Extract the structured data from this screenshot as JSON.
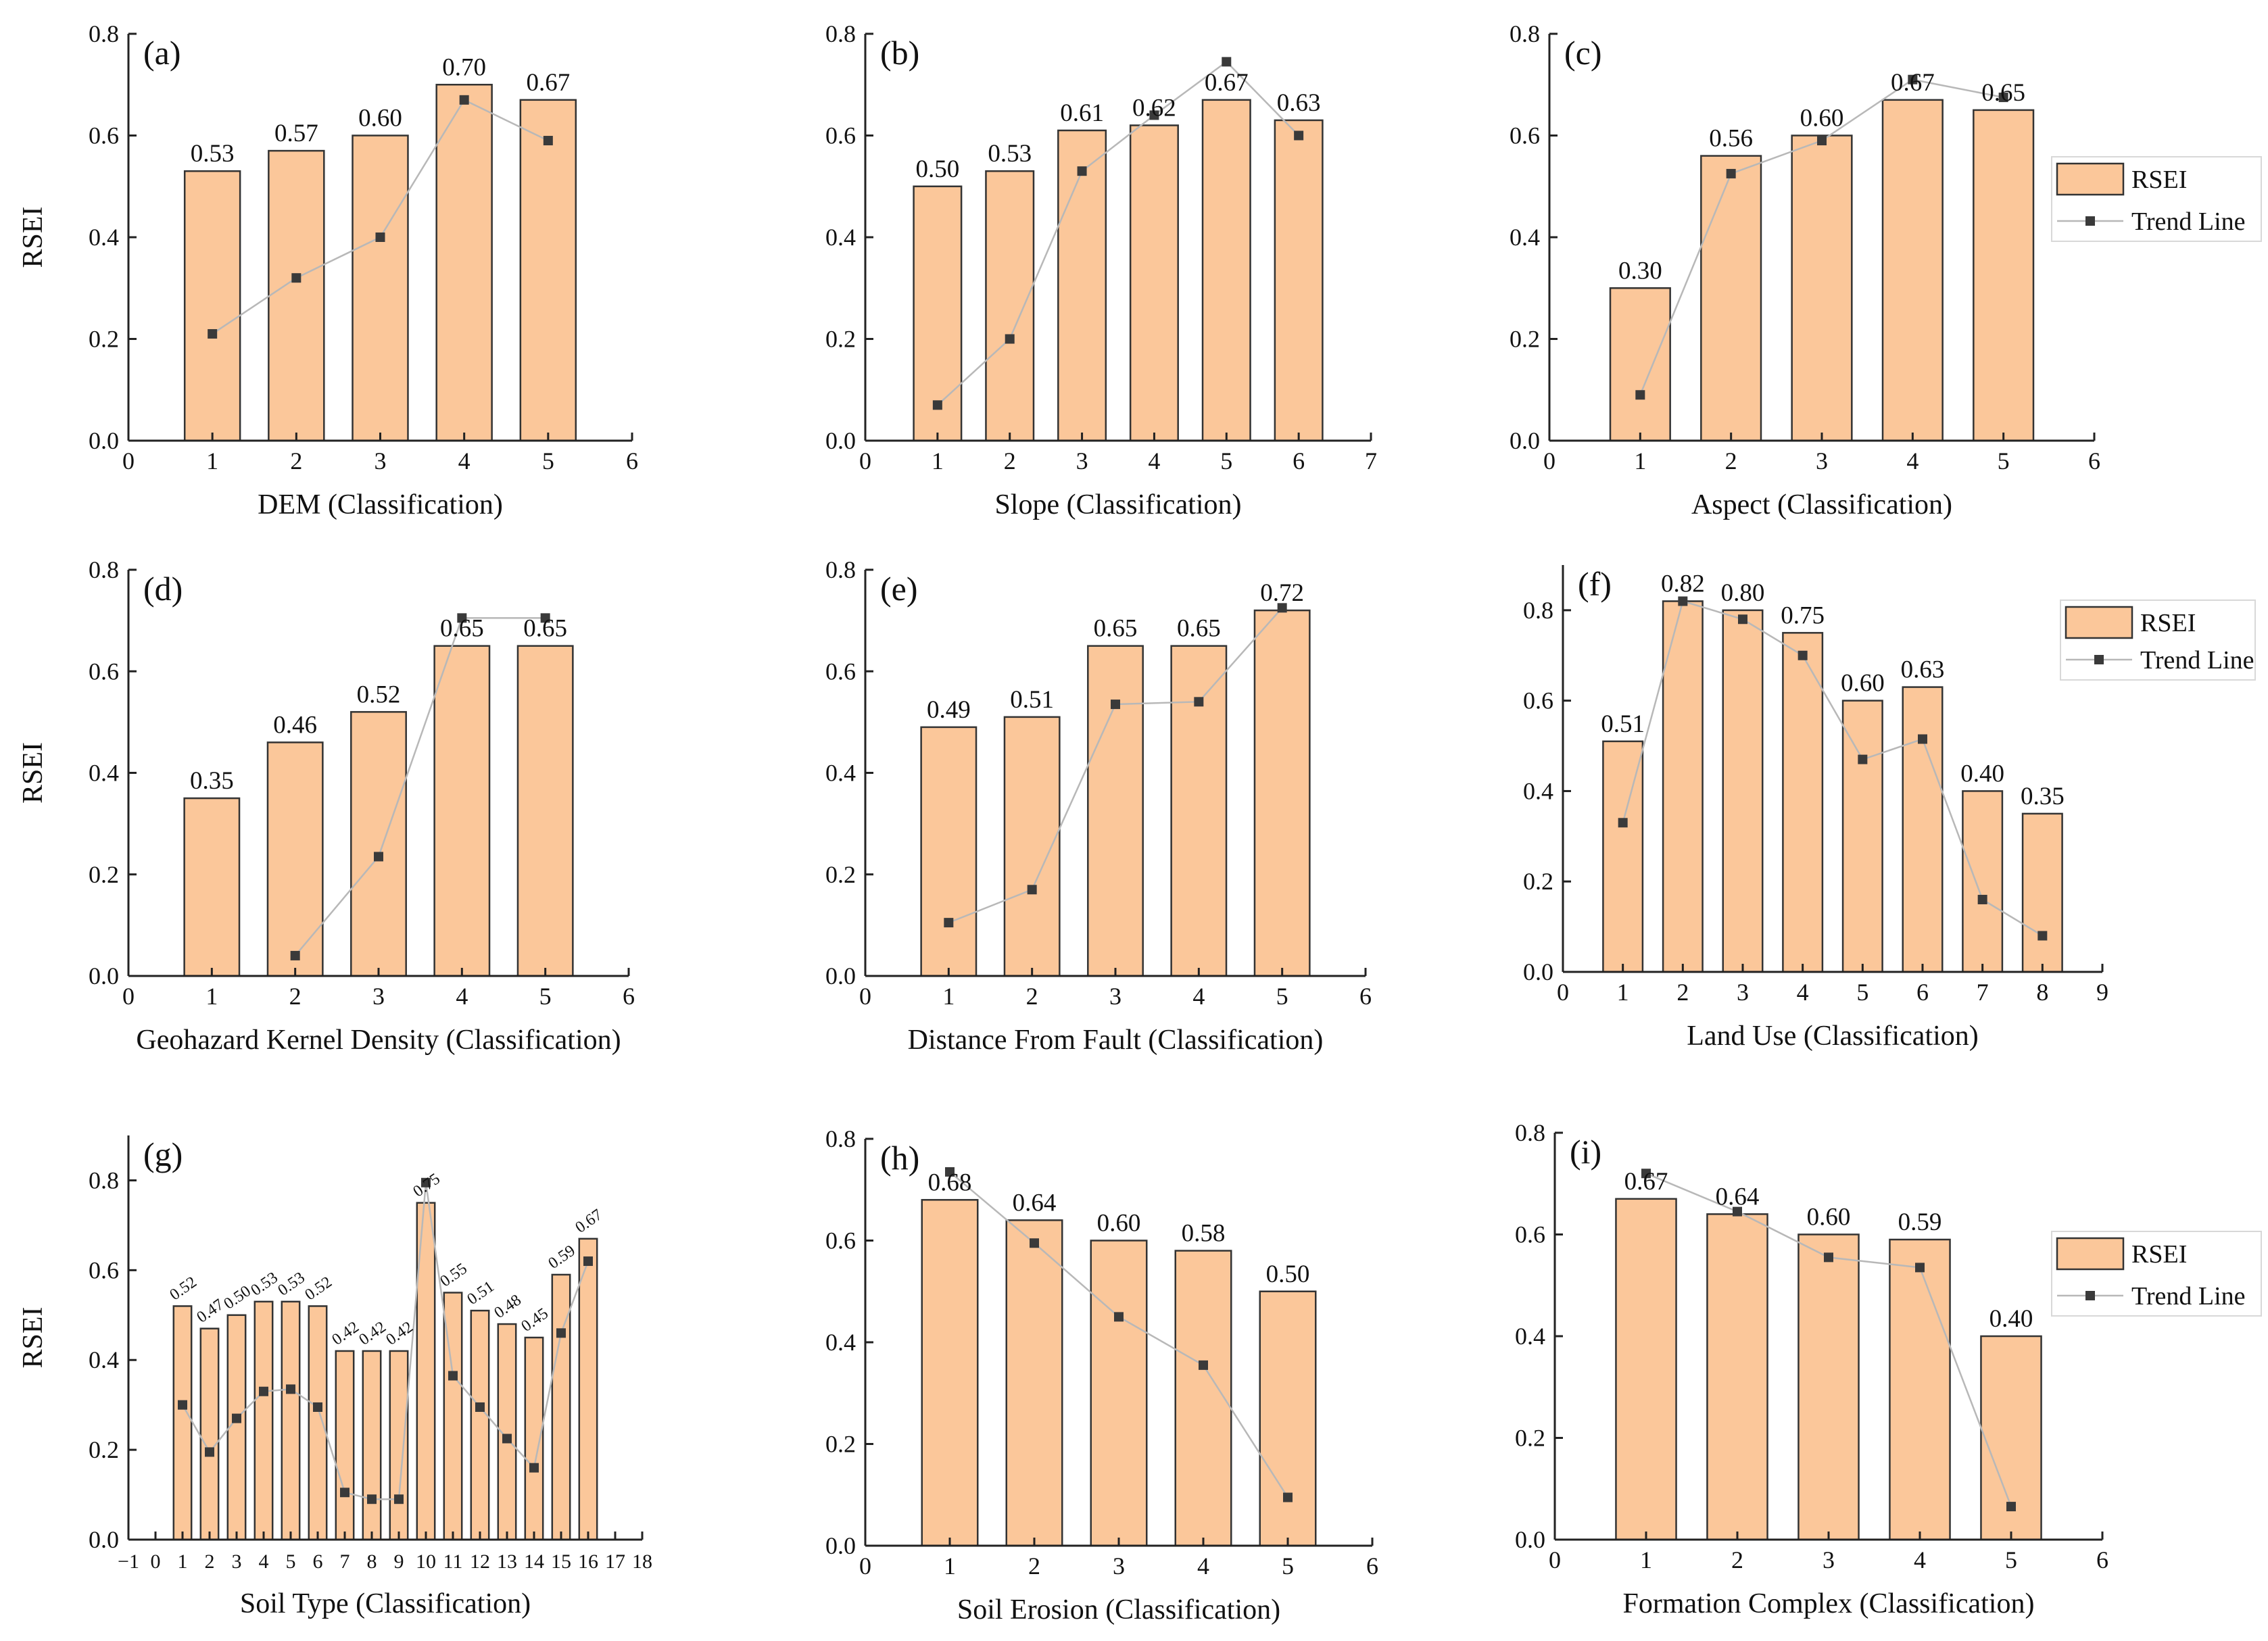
{
  "figure": {
    "y_axis_label": "RSEI",
    "colors": {
      "bar_fill": "#FBC79A",
      "bar_stroke": "#333333",
      "trend_line": "#B8B8B8",
      "trend_point": "#3A3A3A"
    }
  },
  "chart_data": [
    {
      "panel": "(a)",
      "type": "bar",
      "title": "",
      "xlabel": "DEM (Classification)",
      "ylabel": "RSEI",
      "xlim": [
        0,
        6
      ],
      "ylim": [
        0,
        0.8
      ],
      "x_ticks": [
        0,
        1,
        2,
        3,
        4,
        5,
        6
      ],
      "x_tick_labels": [
        "0",
        "1",
        "2",
        "3",
        "4",
        "5",
        "6"
      ],
      "y_ticks": [
        0,
        0.2,
        0.4,
        0.6,
        0.8
      ],
      "y_tick_labels": [
        "0.0",
        "0.2",
        "0.4",
        "0.6",
        "0.8"
      ],
      "categories": [
        1,
        2,
        3,
        4,
        5
      ],
      "series": [
        {
          "name": "RSEI",
          "kind": "bar",
          "values": [
            0.53,
            0.57,
            0.6,
            0.7,
            0.67
          ]
        },
        {
          "name": "Trend Line",
          "kind": "line",
          "values": [
            0.21,
            0.32,
            0.4,
            0.67,
            0.59
          ]
        }
      ],
      "data_labels": [
        "0.53",
        "0.57",
        "0.60",
        "0.70",
        "0.67"
      ],
      "legend": null
    },
    {
      "panel": "(b)",
      "type": "bar",
      "title": "",
      "xlabel": "Slope (Classification)",
      "ylabel": "",
      "xlim": [
        0,
        7
      ],
      "ylim": [
        0,
        0.8
      ],
      "x_ticks": [
        0,
        1,
        2,
        3,
        4,
        5,
        6,
        7
      ],
      "x_tick_labels": [
        "0",
        "1",
        "2",
        "3",
        "4",
        "5",
        "6",
        "7"
      ],
      "y_ticks": [
        0,
        0.2,
        0.4,
        0.6,
        0.8
      ],
      "y_tick_labels": [
        "0.0",
        "0.2",
        "0.4",
        "0.6",
        "0.8"
      ],
      "categories": [
        1,
        2,
        3,
        4,
        5,
        6
      ],
      "series": [
        {
          "name": "RSEI",
          "kind": "bar",
          "values": [
            0.5,
            0.53,
            0.61,
            0.62,
            0.67,
            0.63
          ]
        },
        {
          "name": "Trend Line",
          "kind": "line",
          "values": [
            0.07,
            0.2,
            0.53,
            0.64,
            0.745,
            0.6
          ]
        }
      ],
      "data_labels": [
        "0.50",
        "0.53",
        "0.61",
        "0.62",
        "0.67",
        "0.63"
      ],
      "legend": null
    },
    {
      "panel": "(c)",
      "type": "bar",
      "title": "",
      "xlabel": "Aspect (Classification)",
      "ylabel": "",
      "xlim": [
        0,
        6
      ],
      "ylim": [
        0,
        0.8
      ],
      "x_ticks": [
        0,
        1,
        2,
        3,
        4,
        5,
        6
      ],
      "x_tick_labels": [
        "0",
        "1",
        "2",
        "3",
        "4",
        "5",
        "6"
      ],
      "y_ticks": [
        0,
        0.2,
        0.4,
        0.6,
        0.8
      ],
      "y_tick_labels": [
        "0.0",
        "0.2",
        "0.4",
        "0.6",
        "0.8"
      ],
      "categories": [
        1,
        2,
        3,
        4,
        5
      ],
      "series": [
        {
          "name": "RSEI",
          "kind": "bar",
          "values": [
            0.3,
            0.56,
            0.6,
            0.67,
            0.65
          ]
        },
        {
          "name": "Trend Line",
          "kind": "line",
          "values": [
            0.09,
            0.525,
            0.59,
            0.71,
            0.675
          ]
        }
      ],
      "data_labels": [
        "0.30",
        "0.56",
        "0.60",
        "0.67",
        "0.65"
      ],
      "legend": {
        "position": "right",
        "entries": [
          "RSEI",
          "Trend Line"
        ]
      }
    },
    {
      "panel": "(d)",
      "type": "bar",
      "title": "",
      "xlabel": "Geohazard Kernel Density (Classification)",
      "ylabel": "RSEI",
      "xlim": [
        0,
        6
      ],
      "ylim": [
        0,
        0.8
      ],
      "x_ticks": [
        0,
        1,
        2,
        3,
        4,
        5,
        6
      ],
      "x_tick_labels": [
        "0",
        "1",
        "2",
        "3",
        "4",
        "5",
        "6"
      ],
      "y_ticks": [
        0,
        0.2,
        0.4,
        0.6,
        0.8
      ],
      "y_tick_labels": [
        "0.0",
        "0.2",
        "0.4",
        "0.6",
        "0.8"
      ],
      "categories": [
        1,
        2,
        3,
        4,
        5
      ],
      "series": [
        {
          "name": "RSEI",
          "kind": "bar",
          "values": [
            0.35,
            0.46,
            0.52,
            0.65,
            0.65
          ]
        },
        {
          "name": "Trend Line",
          "kind": "line",
          "values": [
            null,
            0.04,
            0.235,
            0.705,
            0.705
          ]
        }
      ],
      "data_labels": [
        "0.35",
        "0.46",
        "0.52",
        "0.65",
        "0.65"
      ],
      "legend": null
    },
    {
      "panel": "(e)",
      "type": "bar",
      "title": "",
      "xlabel": "Distance From Fault (Classification)",
      "ylabel": "",
      "xlim": [
        0,
        6
      ],
      "ylim": [
        0,
        0.8
      ],
      "x_ticks": [
        0,
        1,
        2,
        3,
        4,
        5,
        6
      ],
      "x_tick_labels": [
        "0",
        "1",
        "2",
        "3",
        "4",
        "5",
        "6"
      ],
      "y_ticks": [
        0,
        0.2,
        0.4,
        0.6,
        0.8
      ],
      "y_tick_labels": [
        "0.0",
        "0.2",
        "0.4",
        "0.6",
        "0.8"
      ],
      "categories": [
        1,
        2,
        3,
        4,
        5
      ],
      "series": [
        {
          "name": "RSEI",
          "kind": "bar",
          "values": [
            0.49,
            0.51,
            0.65,
            0.65,
            0.72
          ]
        },
        {
          "name": "Trend Line",
          "kind": "line",
          "values": [
            0.105,
            0.17,
            0.535,
            0.54,
            0.725
          ]
        }
      ],
      "data_labels": [
        "0.49",
        "0.51",
        "0.65",
        "0.65",
        "0.72"
      ],
      "legend": null
    },
    {
      "panel": "(f)",
      "type": "bar",
      "title": "",
      "xlabel": "Land Use (Classification)",
      "ylabel": "",
      "xlim": [
        0,
        9
      ],
      "ylim": [
        0,
        0.9
      ],
      "x_ticks": [
        0,
        1,
        2,
        3,
        4,
        5,
        6,
        7,
        8,
        9
      ],
      "x_tick_labels": [
        "0",
        "1",
        "2",
        "3",
        "4",
        "5",
        "6",
        "7",
        "8",
        "9"
      ],
      "y_ticks": [
        0,
        0.2,
        0.4,
        0.6,
        0.8
      ],
      "y_tick_labels": [
        "0.0",
        "0.2",
        "0.4",
        "0.6",
        "0.8"
      ],
      "categories": [
        1,
        2,
        3,
        4,
        5,
        6,
        7,
        8
      ],
      "series": [
        {
          "name": "RSEI",
          "kind": "bar",
          "values": [
            0.51,
            0.82,
            0.8,
            0.75,
            0.6,
            0.63,
            0.4,
            0.35
          ]
        },
        {
          "name": "Trend Line",
          "kind": "line",
          "values": [
            0.33,
            0.82,
            0.78,
            0.7,
            0.47,
            0.515,
            0.16,
            0.08
          ]
        }
      ],
      "data_labels": [
        "0.51",
        "0.82",
        "0.80",
        "0.75",
        "0.60",
        "0.63",
        "0.40",
        "0.35"
      ],
      "legend": {
        "position": "top-right",
        "entries": [
          "RSEI",
          "Trend Line"
        ]
      }
    },
    {
      "panel": "(g)",
      "type": "bar",
      "title": "",
      "xlabel": "Soil Type (Classification)",
      "ylabel": "RSEI",
      "xlim": [
        -1,
        18
      ],
      "ylim": [
        0,
        0.9
      ],
      "x_ticks": [
        -1,
        0,
        1,
        2,
        3,
        4,
        5,
        6,
        7,
        8,
        9,
        10,
        11,
        12,
        13,
        14,
        15,
        16,
        17,
        18
      ],
      "x_tick_labels": [
        "−1",
        "0",
        "1",
        "2",
        "3",
        "4",
        "5",
        "6",
        "7",
        "8",
        "9",
        "10",
        "11",
        "12",
        "13",
        "14",
        "15",
        "16",
        "17",
        "18"
      ],
      "y_ticks": [
        0,
        0.2,
        0.4,
        0.6,
        0.8
      ],
      "y_tick_labels": [
        "0.0",
        "0.2",
        "0.4",
        "0.6",
        "0.8"
      ],
      "categories": [
        1,
        2,
        3,
        4,
        5,
        6,
        7,
        8,
        9,
        10,
        11,
        12,
        13,
        14,
        15,
        16
      ],
      "series": [
        {
          "name": "RSEI",
          "kind": "bar",
          "values": [
            0.52,
            0.47,
            0.5,
            0.53,
            0.53,
            0.52,
            0.42,
            0.42,
            0.42,
            0.75,
            0.55,
            0.51,
            0.48,
            0.45,
            0.59,
            0.67
          ]
        },
        {
          "name": "Trend Line",
          "kind": "line",
          "values": [
            0.3,
            0.195,
            0.27,
            0.33,
            0.335,
            0.295,
            0.105,
            0.09,
            0.09,
            0.795,
            0.365,
            0.295,
            0.225,
            0.16,
            0.46,
            0.62
          ]
        }
      ],
      "data_labels": [
        "0.52",
        "0.47",
        "0.50",
        "0.53",
        "0.53",
        "0.52",
        "0.42",
        "0.42",
        "0.42",
        "0.75",
        "0.55",
        "0.51",
        "0.48",
        "0.45",
        "0.59",
        "0.67"
      ],
      "legend": null
    },
    {
      "panel": "(h)",
      "type": "bar",
      "title": "",
      "xlabel": "Soil Erosion (Classification)",
      "ylabel": "",
      "xlim": [
        0,
        6
      ],
      "ylim": [
        0,
        0.8
      ],
      "x_ticks": [
        0,
        1,
        2,
        3,
        4,
        5,
        6
      ],
      "x_tick_labels": [
        "0",
        "1",
        "2",
        "3",
        "4",
        "5",
        "6"
      ],
      "y_ticks": [
        0,
        0.2,
        0.4,
        0.6,
        0.8
      ],
      "y_tick_labels": [
        "0.0",
        "0.2",
        "0.4",
        "0.6",
        "0.8"
      ],
      "categories": [
        1,
        2,
        3,
        4,
        5
      ],
      "series": [
        {
          "name": "RSEI",
          "kind": "bar",
          "values": [
            0.68,
            0.64,
            0.6,
            0.58,
            0.5
          ]
        },
        {
          "name": "Trend Line",
          "kind": "line",
          "values": [
            0.735,
            0.595,
            0.45,
            0.355,
            0.095
          ]
        }
      ],
      "data_labels": [
        "0.68",
        "0.64",
        "0.60",
        "0.58",
        "0.50"
      ],
      "legend": null
    },
    {
      "panel": "(i)",
      "type": "bar",
      "title": "",
      "xlabel": "Formation Complex (Classification)",
      "ylabel": "",
      "xlim": [
        0,
        6
      ],
      "ylim": [
        0,
        0.8
      ],
      "x_ticks": [
        0,
        1,
        2,
        3,
        4,
        5,
        6
      ],
      "x_tick_labels": [
        "0",
        "1",
        "2",
        "3",
        "4",
        "5",
        "6"
      ],
      "y_ticks": [
        0,
        0.2,
        0.4,
        0.6,
        0.8
      ],
      "y_tick_labels": [
        "0.0",
        "0.2",
        "0.4",
        "0.6",
        "0.8"
      ],
      "categories": [
        1,
        2,
        3,
        4,
        5
      ],
      "series": [
        {
          "name": "RSEI",
          "kind": "bar",
          "values": [
            0.67,
            0.64,
            0.6,
            0.59,
            0.4
          ]
        },
        {
          "name": "Trend Line",
          "kind": "line",
          "values": [
            0.72,
            0.645,
            0.555,
            0.535,
            0.065
          ]
        }
      ],
      "data_labels": [
        "0.67",
        "0.64",
        "0.60",
        "0.59",
        "0.40"
      ],
      "legend": {
        "position": "right",
        "entries": [
          "RSEI",
          "Trend Line"
        ]
      }
    }
  ]
}
